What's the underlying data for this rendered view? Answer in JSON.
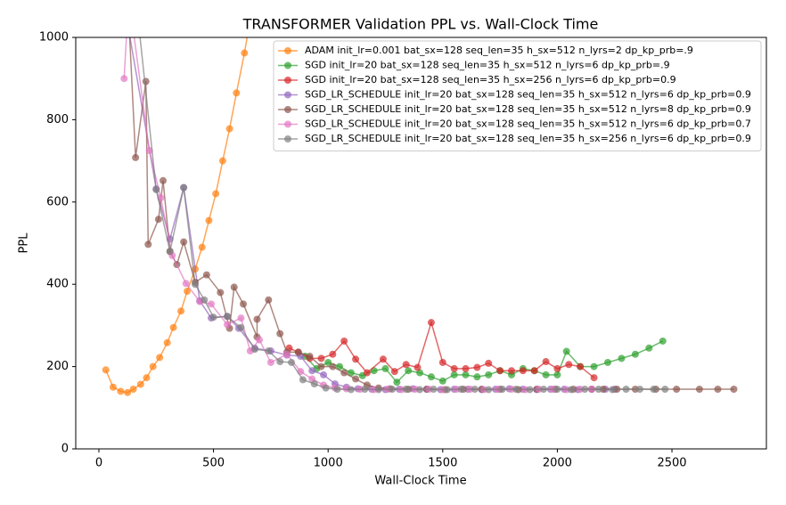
{
  "chart_data": {
    "type": "line",
    "title": "TRANSFORMER Validation PPL vs. Wall-Clock Time",
    "x_label": "Wall-Clock Time",
    "y_label": "PPL",
    "xlim": [
      -101,
      2912
    ],
    "ylim": [
      0,
      1000
    ],
    "xticks": [
      0,
      500,
      1000,
      1500,
      2000,
      2500
    ],
    "yticks": [
      0,
      200,
      400,
      600,
      800,
      1000
    ],
    "grid": false,
    "legend": "upper right",
    "series": [
      {
        "name": "ADAM init_lr=0.001 bat_sx=128 seq_len=35 h_sx=512 n_lyrs=2 dp_kp_prb=.9",
        "color": "#ff7f0e",
        "x": [
          30,
          62,
          95,
          125,
          150,
          182,
          208,
          236,
          265,
          298,
          325,
          358,
          385,
          420,
          450,
          480,
          510,
          540,
          570,
          600,
          635,
          665
        ],
        "values": [
          192,
          150,
          140,
          137,
          145,
          157,
          173,
          200,
          222,
          258,
          295,
          335,
          383,
          437,
          490,
          555,
          620,
          700,
          778,
          865,
          962,
          1060
        ]
      },
      {
        "name": "SGD init_lr=20 bat_sx=128 seq_len=35 h_sx=512 n_lyrs=6 dp_kp_prb=.9",
        "color": "#2ca02c",
        "x": [
          900,
          950,
          1000,
          1050,
          1100,
          1150,
          1200,
          1250,
          1300,
          1350,
          1400,
          1450,
          1500,
          1550,
          1600,
          1650,
          1700,
          1750,
          1800,
          1850,
          1900,
          1950,
          2000,
          2040,
          2100,
          2160,
          2220,
          2280,
          2340,
          2400,
          2460
        ],
        "values": [
          225,
          195,
          210,
          200,
          185,
          178,
          190,
          195,
          162,
          190,
          185,
          175,
          165,
          180,
          180,
          175,
          180,
          190,
          180,
          195,
          190,
          180,
          180,
          237,
          200,
          200,
          210,
          220,
          230,
          245,
          262
        ]
      },
      {
        "name": "SGD init_lr=20 bat_sx=128 seq_len=35 h_sx=256 n_lyrs=6 dp_kp_prb=0.9",
        "color": "#d62728",
        "x": [
          830,
          870,
          920,
          970,
          1020,
          1070,
          1120,
          1170,
          1240,
          1290,
          1340,
          1390,
          1450,
          1500,
          1550,
          1600,
          1650,
          1700,
          1750,
          1800,
          1850,
          1900,
          1950,
          2000,
          2050,
          2100,
          2160
        ],
        "values": [
          245,
          235,
          220,
          220,
          230,
          262,
          218,
          185,
          218,
          188,
          205,
          198,
          307,
          210,
          195,
          195,
          198,
          208,
          190,
          190,
          190,
          190,
          212,
          195,
          205,
          200,
          173
        ]
      },
      {
        "name": "SGD_LR_SCHEDULE init_lr=20 bat_sx=128 seq_len=35 h_sx=512 n_lyrs=6 dp_kp_prb=0.9",
        "color": "#9467bd",
        "x": [
          120,
          250,
          310,
          370,
          440,
          490,
          560,
          610,
          680,
          750,
          820,
          880,
          930,
          980,
          1030,
          1080,
          1130,
          1190,
          1250,
          1310,
          1370,
          1430,
          1490,
          1550,
          1610,
          1670,
          1730,
          1790,
          1850,
          1910,
          1970,
          2030,
          2090,
          2150,
          2210,
          2250
        ],
        "values": [
          1050,
          632,
          510,
          635,
          360,
          318,
          322,
          293,
          245,
          238,
          228,
          225,
          190,
          180,
          158,
          150,
          146,
          145,
          144,
          145,
          146,
          145,
          144,
          145,
          145,
          144,
          145,
          146,
          145,
          144,
          145,
          145,
          144,
          145,
          145,
          145
        ]
      },
      {
        "name": "SGD_LR_SCHEDULE init_lr=20 bat_sx=128 seq_len=35 h_sx=512 n_lyrs=8 dp_kp_prb=0.9",
        "color": "#8c564b",
        "x": [
          130,
          160,
          205,
          215,
          260,
          280,
          310,
          340,
          370,
          420,
          470,
          530,
          570,
          590,
          630,
          690,
          690,
          740,
          790,
          820,
          870,
          920,
          970,
          1020,
          1070,
          1120,
          1170,
          1220,
          1270,
          1350,
          1430,
          1510,
          1590,
          1670,
          1750,
          1830,
          1910,
          1990,
          2070,
          2150,
          2200,
          2260,
          2340,
          2430,
          2520,
          2620,
          2700,
          2770
        ],
        "values": [
          1050,
          708,
          893,
          497,
          558,
          652,
          480,
          448,
          503,
          405,
          423,
          380,
          293,
          393,
          352,
          272,
          315,
          362,
          280,
          235,
          235,
          225,
          200,
          200,
          185,
          170,
          155,
          148,
          146,
          145,
          145,
          144,
          145,
          145,
          145,
          144,
          145,
          145,
          145,
          145,
          145,
          145,
          145,
          145,
          145,
          145,
          145,
          145
        ]
      },
      {
        "name": "SGD_LR_SCHEDULE init_lr=20 bat_sx=128 seq_len=35 h_sx=512 n_lyrs=6 dp_kp_prb=0.7",
        "color": "#e377c2",
        "x": [
          110,
          130,
          220,
          270,
          320,
          380,
          440,
          490,
          560,
          620,
          660,
          700,
          750,
          820,
          880,
          930,
          980,
          1030,
          1080,
          1140,
          1200,
          1260,
          1320,
          1380,
          1440,
          1500,
          1560,
          1620,
          1680,
          1740,
          1800,
          1860,
          1920,
          1980,
          2040,
          2100,
          2150
        ],
        "values": [
          900,
          1100,
          725,
          610,
          470,
          402,
          358,
          352,
          302,
          318,
          238,
          265,
          210,
          230,
          188,
          170,
          155,
          148,
          146,
          145,
          144,
          145,
          144,
          145,
          145,
          144,
          145,
          145,
          144,
          145,
          145,
          144,
          145,
          145,
          144,
          145,
          145
        ]
      },
      {
        "name": "SGD_LR_SCHEDULE init_lr=20 bat_sx=128 seq_len=35 h_sx=256 n_lyrs=6 dp_kp_prb=0.9",
        "color": "#7f7f7f",
        "x": [
          170,
          250,
          310,
          370,
          420,
          460,
          500,
          560,
          620,
          680,
          740,
          790,
          840,
          890,
          940,
          990,
          1040,
          1100,
          1160,
          1220,
          1280,
          1340,
          1400,
          1460,
          1520,
          1580,
          1640,
          1700,
          1760,
          1820,
          1880,
          1940,
          2000,
          2060,
          2120,
          2180,
          2240,
          2300,
          2360,
          2420,
          2470
        ],
        "values": [
          1050,
          630,
          480,
          635,
          400,
          362,
          320,
          322,
          295,
          242,
          238,
          212,
          210,
          168,
          158,
          148,
          145,
          144,
          145,
          144,
          145,
          145,
          144,
          145,
          144,
          145,
          145,
          144,
          145,
          145,
          144,
          145,
          145,
          144,
          145,
          145,
          144,
          145,
          145,
          145,
          145
        ]
      }
    ]
  }
}
